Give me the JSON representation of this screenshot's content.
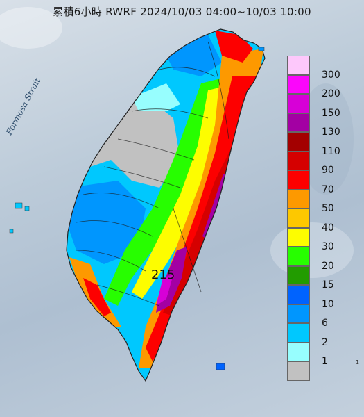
{
  "title": "累積6小時 RWRF 2024/10/03 04:00~10/03 10:00",
  "strait_label": "Formosa Strait",
  "max_value_label": "215",
  "corner_text": "1",
  "legend": {
    "labels": [
      "300",
      "200",
      "150",
      "130",
      "110",
      "90",
      "70",
      "50",
      "40",
      "30",
      "20",
      "15",
      "10",
      "6",
      "2",
      "1"
    ],
    "colors": [
      "#fdc8fb",
      "#fb06fb",
      "#d700d7",
      "#a300a3",
      "#a30000",
      "#d50000",
      "#fd0000",
      "#fd9900",
      "#fdc800",
      "#fdfd00",
      "#27fe00",
      "#229c00",
      "#0063fe",
      "#0096fe",
      "#00c8fe",
      "#97fefe",
      "#c1c1c1"
    ]
  }
}
